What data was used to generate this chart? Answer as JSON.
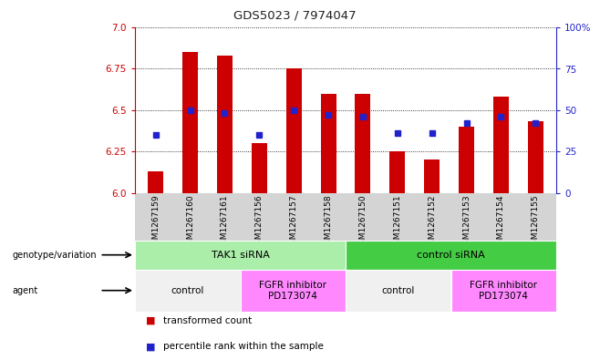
{
  "title": "GDS5023 / 7974047",
  "samples": [
    "GSM1267159",
    "GSM1267160",
    "GSM1267161",
    "GSM1267156",
    "GSM1267157",
    "GSM1267158",
    "GSM1267150",
    "GSM1267151",
    "GSM1267152",
    "GSM1267153",
    "GSM1267154",
    "GSM1267155"
  ],
  "bar_values": [
    6.13,
    6.85,
    6.83,
    6.3,
    6.75,
    6.6,
    6.6,
    6.25,
    6.2,
    6.4,
    6.58,
    6.43
  ],
  "bar_base": 6.0,
  "percentile_values": [
    35,
    50,
    48,
    35,
    50,
    47,
    46,
    36,
    36,
    42,
    46,
    42
  ],
  "ylim_left": [
    6.0,
    7.0
  ],
  "ylim_right": [
    0,
    100
  ],
  "yticks_left": [
    6.0,
    6.25,
    6.5,
    6.75,
    7.0
  ],
  "yticks_right": [
    0,
    25,
    50,
    75,
    100
  ],
  "bar_color": "#cc0000",
  "dot_color": "#2222cc",
  "left_axis_color": "#cc0000",
  "right_axis_color": "#2222cc",
  "plot_bg": "#ffffff",
  "xtick_bg": "#d4d4d4",
  "genotype_groups": [
    {
      "text": "TAK1 siRNA",
      "start": 0,
      "end": 5,
      "color": "#aaeeaa"
    },
    {
      "text": "control siRNA",
      "start": 6,
      "end": 11,
      "color": "#44cc44"
    }
  ],
  "agent_groups": [
    {
      "text": "control",
      "start": 0,
      "end": 2,
      "color": "#f0f0f0"
    },
    {
      "text": "FGFR inhibitor\nPD173074",
      "start": 3,
      "end": 5,
      "color": "#ff88ff"
    },
    {
      "text": "control",
      "start": 6,
      "end": 8,
      "color": "#f0f0f0"
    },
    {
      "text": "FGFR inhibitor\nPD173074",
      "start": 9,
      "end": 11,
      "color": "#ff88ff"
    }
  ],
  "legend_items": [
    {
      "color": "#cc0000",
      "label": "transformed count"
    },
    {
      "color": "#2222cc",
      "label": "percentile rank within the sample"
    }
  ],
  "genotype_label": "genotype/variation",
  "agent_label": "agent"
}
